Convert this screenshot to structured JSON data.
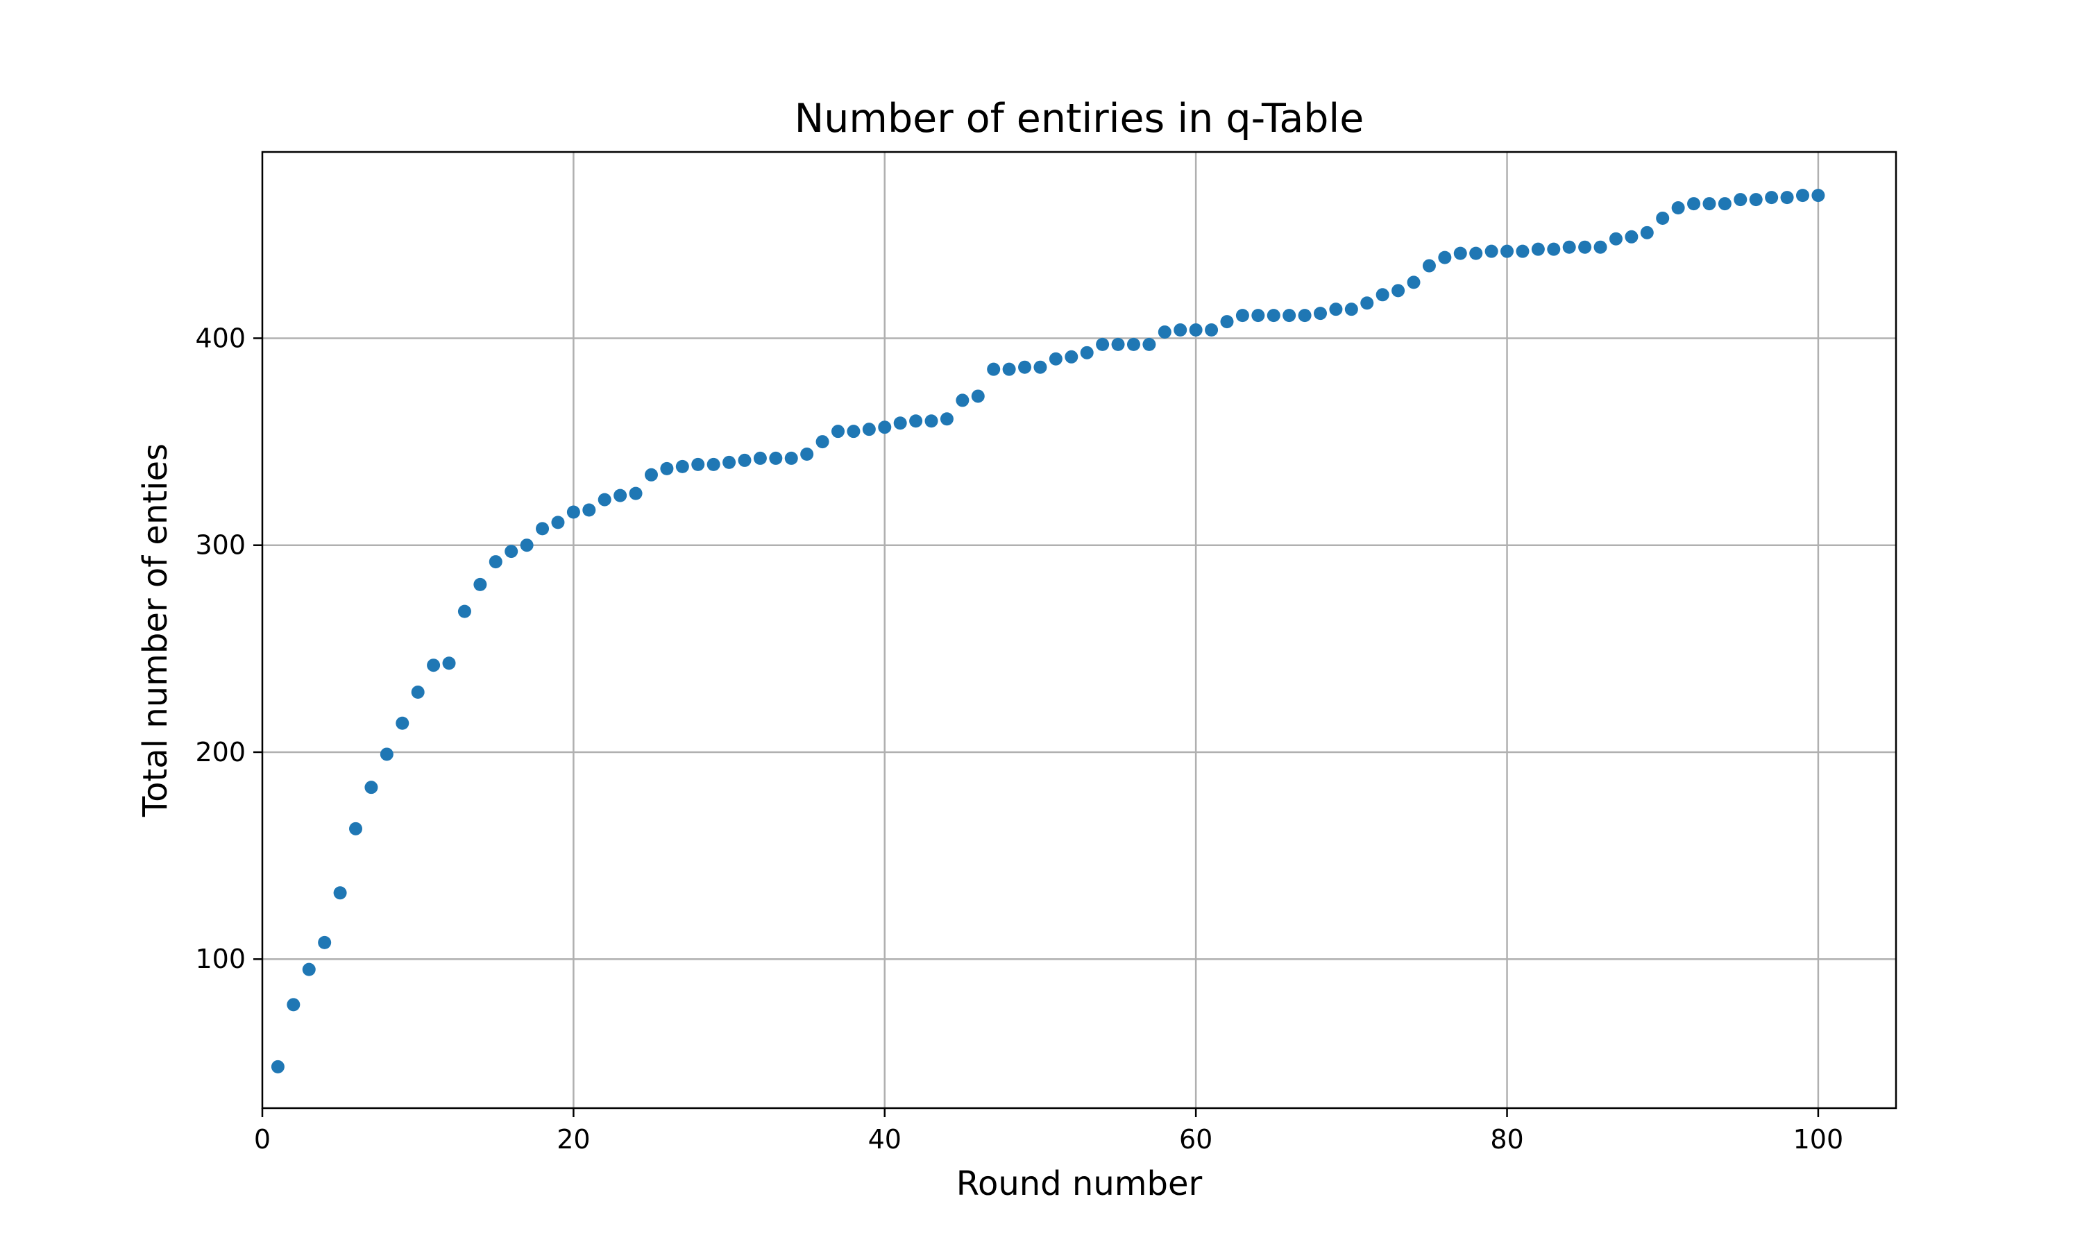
{
  "chart_data": {
    "type": "scatter",
    "title": "Number of entiries in q-Table",
    "xlabel": "Round number",
    "ylabel": "Total number of enties",
    "xlim": [
      0,
      105
    ],
    "ylim": [
      28,
      490
    ],
    "xticks": [
      0,
      20,
      40,
      60,
      80,
      100
    ],
    "yticks": [
      100,
      200,
      300,
      400
    ],
    "grid": true,
    "marker_color": "#1f77b4",
    "x": [
      1,
      2,
      3,
      4,
      5,
      6,
      7,
      8,
      9,
      10,
      11,
      12,
      13,
      14,
      15,
      16,
      17,
      18,
      19,
      20,
      21,
      22,
      23,
      24,
      25,
      26,
      27,
      28,
      29,
      30,
      31,
      32,
      33,
      34,
      35,
      36,
      37,
      38,
      39,
      40,
      41,
      42,
      43,
      44,
      45,
      46,
      47,
      48,
      49,
      50,
      51,
      52,
      53,
      54,
      55,
      56,
      57,
      58,
      59,
      60,
      61,
      62,
      63,
      64,
      65,
      66,
      67,
      68,
      69,
      70,
      71,
      72,
      73,
      74,
      75,
      76,
      77,
      78,
      79,
      80,
      81,
      82,
      83,
      84,
      85,
      86,
      87,
      88,
      89,
      90,
      91,
      92,
      93,
      94,
      95,
      96,
      97,
      98,
      99,
      100
    ],
    "y": [
      48,
      78,
      95,
      108,
      132,
      163,
      183,
      199,
      214,
      229,
      242,
      243,
      268,
      281,
      292,
      297,
      300,
      308,
      311,
      316,
      317,
      322,
      324,
      325,
      334,
      337,
      338,
      339,
      339,
      340,
      341,
      342,
      342,
      342,
      344,
      350,
      355,
      355,
      356,
      357,
      359,
      360,
      360,
      361,
      370,
      372,
      385,
      385,
      386,
      386,
      390,
      391,
      393,
      397,
      397,
      397,
      397,
      403,
      404,
      404,
      404,
      408,
      411,
      411,
      411,
      411,
      411,
      412,
      414,
      414,
      417,
      421,
      423,
      427,
      435,
      439,
      441,
      441,
      442,
      442,
      442,
      443,
      443,
      444,
      444,
      444,
      448,
      449,
      451,
      458,
      463,
      465,
      465,
      465,
      467,
      467,
      468,
      468,
      469,
      469
    ]
  }
}
